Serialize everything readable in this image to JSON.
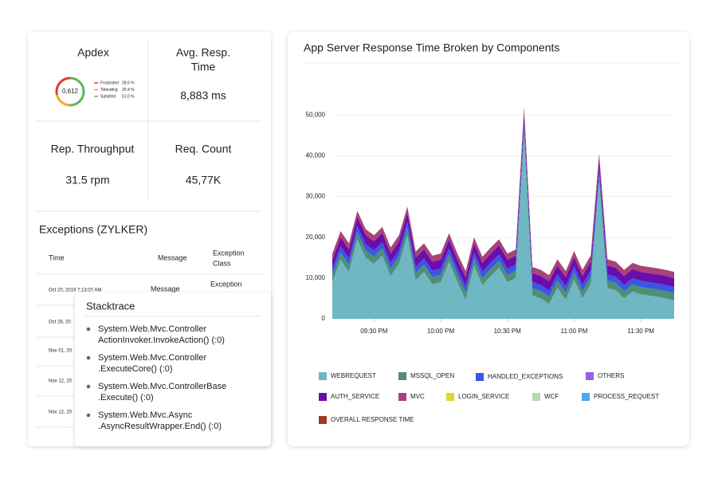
{
  "metrics": {
    "apdex": {
      "title": "Apdex",
      "score": "0,612",
      "legend": [
        {
          "label": "Frustrated",
          "value": 28.6,
          "value_label": "28.6 %",
          "color": "#e53935"
        },
        {
          "label": "Tolerating",
          "value": 20.4,
          "value_label": "20.4 %",
          "color": "#f5a623"
        },
        {
          "label": "Satisfied",
          "value": 51.0,
          "value_label": "51.0 %",
          "color": "#5cb85c"
        }
      ]
    },
    "avg_resp": {
      "title": [
        "Avg. Resp.",
        "Time"
      ],
      "value": "8,883 ms"
    },
    "throughput": {
      "title": "Rep. Throughput",
      "value": "31.5 rpm"
    },
    "req_count": {
      "title": "Req. Count",
      "value": "45,77K"
    }
  },
  "exceptions": {
    "title": "Exceptions (ZYLKER)",
    "columns": [
      "Time",
      "Message",
      [
        "Exception",
        "Class"
      ]
    ],
    "rows": [
      [
        "Oct 20, 2019 7:13:07 AM",
        "Message",
        "Exception"
      ],
      [
        "Oct 28, 20"
      ],
      [
        "Nov 01, 20"
      ],
      [
        "Nov 12, 20"
      ],
      [
        "Nov 12, 20"
      ]
    ]
  },
  "stacktrace": {
    "title": "Stacktrace",
    "items": [
      [
        "System.Web.Mvc.Controller",
        "ActionInvoker.InvokeAction() (:0)"
      ],
      [
        "System.Web.Mvc.Controller",
        ".ExecuteCore() (:0)"
      ],
      [
        "System.Web.Mvc.ControllerBase",
        ".Execute() (:0)"
      ],
      [
        "System.Web.Mvc.Async",
        ".AsyncResultWrapper.End() (:0)"
      ]
    ]
  },
  "chart_data": {
    "type": "stacked_area",
    "title": "App Server Response Time Broken by Components",
    "categories": [
      null,
      null,
      null,
      null,
      null,
      "09:30 PM",
      null,
      null,
      null,
      null,
      null,
      null,
      null,
      "10:00 PM",
      null,
      null,
      null,
      null,
      null,
      null,
      null,
      "10:30 PM",
      null,
      null,
      null,
      null,
      null,
      null,
      null,
      "11:00 PM",
      null,
      null,
      null,
      null,
      null,
      null,
      null,
      "11:30 PM",
      null,
      null,
      null,
      null
    ],
    "ylim": [
      0,
      52000
    ],
    "yticks": [
      0,
      {
        "value": 10000,
        "label": "10,000"
      },
      {
        "value": 20000,
        "label": "20,000"
      },
      {
        "value": 30000,
        "label": "30,000"
      },
      {
        "value": 40000,
        "label": "40,000"
      },
      {
        "value": 50000,
        "label": "50,000"
      }
    ],
    "grid": true,
    "series": [
      {
        "name": "WEBREQUEST",
        "color": "#6fb7c2",
        "values": [
          9000,
          14500,
          11500,
          19500,
          15000,
          13500,
          15500,
          10500,
          13500,
          20500,
          9500,
          11500,
          8500,
          9000,
          14000,
          9000,
          4700,
          13000,
          8200,
          10500,
          12500,
          9000,
          10000,
          45000,
          5700,
          5000,
          3700,
          7600,
          4700,
          9600,
          5000,
          8600,
          33600,
          7600,
          7000,
          5000,
          6700,
          6000,
          5700,
          5400,
          5000,
          4500
        ]
      },
      {
        "name": "MSSQL_OPEN",
        "color": "#4f8f78",
        "values": [
          1800,
          1800,
          1800,
          1800,
          1800,
          1800,
          1800,
          1800,
          1800,
          1800,
          1800,
          1800,
          1800,
          1800,
          1800,
          1800,
          1800,
          1800,
          1800,
          1800,
          1800,
          1800,
          1800,
          1800,
          1800,
          1800,
          1800,
          1800,
          1800,
          1800,
          1800,
          1800,
          1800,
          1800,
          1800,
          1800,
          1800,
          1800,
          1800,
          1800,
          1800,
          1800
        ]
      },
      {
        "name": "HANDLED_EXCEPTIONS",
        "color": "#3a56e4",
        "values": [
          1500,
          1500,
          1500,
          1500,
          1500,
          1500,
          1500,
          1500,
          1500,
          1500,
          1500,
          1500,
          1500,
          1500,
          1500,
          1500,
          1500,
          1500,
          1500,
          1500,
          1500,
          1500,
          1500,
          1500,
          1500,
          1500,
          1500,
          1500,
          1500,
          1500,
          1500,
          1500,
          1500,
          1500,
          1500,
          1500,
          1500,
          1500,
          1500,
          1500,
          1500,
          1500
        ]
      },
      {
        "name": "OTHERS",
        "color": "#9b5de5"
      },
      {
        "name": "AUTH_SERVICE",
        "color": "#6a0dad",
        "values": [
          2200,
          2200,
          2200,
          2200,
          2200,
          2200,
          2200,
          2200,
          2200,
          2200,
          2200,
          2200,
          2200,
          2200,
          2200,
          2200,
          2200,
          2200,
          2200,
          2200,
          2200,
          2200,
          2200,
          2200,
          2200,
          2200,
          2200,
          2200,
          2200,
          2200,
          2200,
          2200,
          2200,
          2200,
          2200,
          2200,
          2200,
          2200,
          2200,
          2200,
          2200,
          2200
        ]
      },
      {
        "name": "MVC",
        "color": "#a8437a",
        "values": [
          1500,
          1500,
          1500,
          1500,
          1500,
          1500,
          1500,
          1500,
          1500,
          1500,
          1500,
          1500,
          1500,
          1500,
          1500,
          1500,
          1500,
          1500,
          1500,
          1500,
          1500,
          1500,
          1500,
          1500,
          1500,
          1500,
          1500,
          1500,
          1500,
          1500,
          1500,
          1500,
          1500,
          1500,
          1500,
          1500,
          1500,
          1500,
          1500,
          1500,
          1500,
          1500
        ]
      },
      {
        "name": "LOGIN_SERVICE",
        "color": "#e8d52a"
      },
      {
        "name": "WCF",
        "color": "#b5d9b0"
      },
      {
        "name": "PROCESS_REQUEST",
        "color": "#52a7ea"
      },
      {
        "name": "OVERALL RESPONSE TIME",
        "color": "#9e3a1f"
      }
    ]
  }
}
